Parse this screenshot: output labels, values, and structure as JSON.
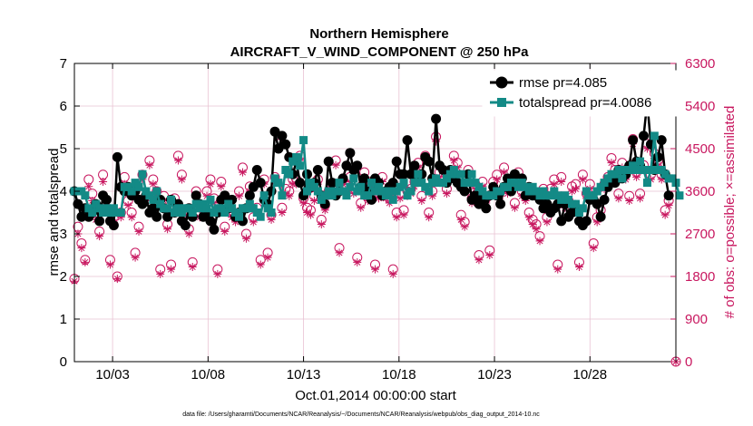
{
  "chart_data": {
    "type": "line",
    "title_line1": "Northern Hemisphere",
    "title_line2": "AIRCRAFT_V_WIND_COMPONENT @ 250 hPa",
    "xlabel": "Oct.01,2014 00:00:00 start",
    "ylabel_left": "rmse and totalspread",
    "ylabel_right": "# of obs: o=possible; ×=assimilated",
    "footer": "data file: /Users/gharamti/Documents/NCAR/Reanalysis/~/Documents/NCAR/Reanalysis/webpub/obs_diag_output_2014-10.nc",
    "xlim": [
      1,
      32.5
    ],
    "ylim_left": [
      0,
      7
    ],
    "ylim_right": [
      0,
      6300
    ],
    "xticks": [
      3,
      8,
      13,
      18,
      23,
      28
    ],
    "xtick_labels": [
      "10/03",
      "10/08",
      "10/13",
      "10/18",
      "10/23",
      "10/28"
    ],
    "yticks_left": [
      0,
      1,
      2,
      3,
      4,
      5,
      6,
      7
    ],
    "yticks_right": [
      0,
      900,
      1800,
      2700,
      3600,
      4500,
      5400,
      6300
    ],
    "colors": {
      "rmse": "#000000",
      "spread": "#138a86",
      "obs": "#c8175f",
      "grid": "#e9c3d3"
    },
    "series": [
      {
        "name": "rmse pr=4.085",
        "values": [
          4.0,
          3.7,
          3.4,
          3.6,
          3.4,
          3.5,
          3.7,
          3.3,
          3.9,
          3.8,
          3.3,
          3.2,
          4.8,
          4.1,
          4.0,
          4.1,
          3.9,
          4.0,
          3.8,
          3.7,
          3.9,
          3.5,
          3.6,
          3.4,
          3.8,
          3.6,
          3.4,
          3.8,
          3.5,
          3.7,
          3.3,
          3.2,
          3.6,
          3.4,
          3.9,
          3.7,
          3.4,
          3.5,
          3.3,
          3.1,
          3.5,
          3.8,
          3.9,
          3.6,
          3.8,
          3.4,
          3.5,
          3.3,
          3.6,
          3.9,
          4.1,
          4.5,
          4.2,
          3.8,
          3.7,
          4.0,
          5.4,
          5.0,
          5.3,
          5.1,
          4.8,
          4.4,
          4.7,
          4.2,
          3.9,
          4.4,
          4.1,
          4.2,
          4.5,
          3.9,
          3.7,
          4.7,
          4.2,
          3.9,
          4.0,
          4.3,
          4.6,
          4.9,
          4.5,
          4.6,
          4.1,
          4.3,
          4.0,
          3.8,
          4.3,
          4.2,
          3.9,
          4.0,
          4.1,
          4.2,
          4.7,
          4.4,
          4.4,
          5.2,
          4.4,
          4.6,
          4.3,
          4.4,
          4.8,
          4.7,
          4.3,
          5.7,
          4.6,
          4.5,
          4.2,
          4.5,
          4.3,
          4.2,
          4.1,
          4.0,
          4.4,
          3.8,
          3.9,
          3.7,
          3.8,
          3.6,
          3.9,
          4.1,
          3.9,
          3.7,
          4.1,
          4.3,
          4.0,
          4.4,
          4.2,
          4.3,
          3.9,
          4.1,
          3.9,
          3.9,
          3.8,
          3.6,
          3.7,
          3.5,
          3.6,
          3.7,
          3.3,
          3.7,
          3.4,
          3.5,
          3.6,
          3.3,
          3.2,
          3.3,
          3.8,
          3.8,
          3.7,
          3.4,
          3.8,
          4.1,
          4.3,
          4.2,
          4.5,
          4.3,
          4.4,
          4.6,
          5.2,
          4.7,
          4.6,
          5.3,
          6.1,
          5.1,
          4.5,
          4.8,
          5.2,
          4.4,
          3.9
        ]
      },
      {
        "name": "totalspread pr=4.0086",
        "values": [
          4.0,
          4.0,
          4.0,
          3.9,
          3.6,
          3.5,
          3.7,
          3.6,
          3.5,
          3.6,
          3.5,
          3.6,
          3.5,
          3.5,
          4.1,
          4.1,
          4.0,
          4.2,
          4.1,
          4.4,
          4.0,
          3.9,
          3.8,
          4.0,
          3.7,
          3.6,
          3.6,
          3.8,
          3.5,
          3.6,
          3.5,
          3.6,
          3.6,
          3.5,
          3.7,
          3.6,
          3.7,
          3.6,
          3.8,
          3.5,
          3.6,
          3.6,
          3.5,
          3.7,
          3.6,
          3.5,
          3.4,
          3.6,
          3.6,
          3.7,
          3.6,
          3.5,
          3.4,
          3.9,
          3.6,
          3.5,
          4.3,
          4.2,
          3.9,
          4.5,
          4.4,
          4.7,
          4.8,
          4.6,
          5.2,
          4.0,
          4.2,
          4.1,
          4.0,
          3.8,
          3.9,
          4.0,
          3.9,
          4.0,
          4.2,
          4.0,
          3.9,
          4.1,
          4.3,
          4.0,
          4.1,
          3.9,
          3.9,
          4.2,
          4.0,
          4.1,
          4.0,
          3.9,
          4.0,
          3.8,
          4.0,
          4.1,
          4.2,
          3.9,
          4.0,
          4.2,
          4.4,
          4.2,
          4.1,
          4.0,
          4.2,
          4.3,
          4.2,
          4.2,
          4.3,
          4.4,
          4.5,
          4.4,
          4.4,
          4.2,
          4.2,
          4.4,
          4.2,
          4.1,
          4.0,
          3.9,
          3.9,
          3.9,
          4.0,
          4.0,
          4.1,
          4.1,
          4.2,
          4.2,
          4.1,
          4.2,
          4.1,
          4.0,
          4.1,
          4.0,
          3.9,
          4.0,
          3.9,
          3.9,
          4.0,
          3.9,
          3.8,
          3.9,
          3.8,
          3.7,
          3.7,
          3.5,
          3.6,
          4.0,
          3.9,
          3.9,
          4.0,
          4.1,
          4.2,
          4.3,
          4.4,
          4.4,
          4.5,
          4.3,
          4.5,
          4.5,
          4.6,
          4.5,
          4.7,
          4.5,
          4.2,
          4.5,
          5.3,
          4.5,
          4.5,
          4.4,
          4.3,
          4.3,
          4.2,
          3.9
        ]
      },
      {
        "name": "possible obs",
        "values": [
          1750,
          2850,
          2500,
          2150,
          3850,
          3550,
          3150,
          2750,
          3950,
          3250,
          2150,
          3050,
          1800,
          3150,
          3900,
          3400,
          3150,
          2300,
          2850,
          3950,
          3500,
          4250,
          3850,
          3600,
          1950,
          3500,
          2900,
          2050,
          3450,
          4350,
          3950,
          3200,
          2800,
          2100,
          3600,
          3150,
          3250,
          3600,
          3850,
          3450,
          1950,
          3800,
          2850,
          3250,
          3150,
          3050,
          3600,
          4100,
          2700,
          3700,
          3050,
          3250,
          2150,
          3850,
          2300,
          3100,
          3900,
          4600,
          3250,
          3650,
          3600,
          3850,
          3850,
          4350,
          3450,
          3250,
          3200,
          3500,
          3850,
          3000,
          3300,
          3600,
          3650,
          4250,
          2400,
          3850,
          3650,
          3900,
          3650,
          2200,
          3350,
          4000,
          3500,
          3800,
          2050,
          3550,
          3900,
          3550,
          3450,
          1950,
          3150,
          3550,
          3200,
          3600,
          3650,
          3800,
          4200,
          3500,
          4350,
          3150,
          3600,
          4750,
          4000,
          3900,
          3650,
          3950,
          4350,
          4200,
          3100,
          2950,
          4050,
          3450,
          3750,
          2250,
          3800,
          3450,
          2350,
          3800,
          3950,
          3600,
          4100,
          3650,
          3850,
          3350,
          4000,
          3600,
          3500,
          3150,
          3000,
          2900,
          2650,
          3650,
          3050,
          3650,
          3850,
          2050,
          3900,
          3350,
          3400,
          3700,
          3750,
          2100,
          3950,
          3550,
          3750,
          2500,
          3050,
          3200,
          3750,
          3900,
          4300,
          4050,
          3550,
          4200,
          3950,
          3500,
          4700,
          4000,
          3550,
          4150,
          4600,
          3950,
          4400,
          4250,
          3950,
          3200,
          3400
        ]
      },
      {
        "name": "assimilated obs",
        "values": [
          1700,
          2700,
          2400,
          2100,
          3700,
          3400,
          3000,
          2650,
          3800,
          3150,
          2050,
          2950,
          1750,
          3050,
          3750,
          3300,
          3050,
          2200,
          2750,
          3850,
          3400,
          4150,
          3750,
          3500,
          1850,
          3400,
          2800,
          1950,
          3350,
          4250,
          3850,
          3100,
          2700,
          2000,
          3500,
          3050,
          3150,
          3500,
          3750,
          3350,
          1850,
          3700,
          2750,
          3150,
          3050,
          2950,
          3500,
          4000,
          2600,
          3600,
          2950,
          3150,
          2050,
          3750,
          2200,
          3000,
          3800,
          4500,
          3150,
          3550,
          3500,
          3750,
          3750,
          4250,
          3350,
          3150,
          3100,
          3400,
          3750,
          2900,
          3200,
          3500,
          3550,
          4150,
          2300,
          3750,
          3550,
          3800,
          3550,
          2100,
          3250,
          3900,
          3400,
          3700,
          1950,
          3450,
          3800,
          3450,
          3350,
          1850,
          3050,
          3450,
          3100,
          3500,
          3550,
          3700,
          4100,
          3400,
          4250,
          3050,
          3500,
          4650,
          3900,
          3800,
          3550,
          3850,
          4250,
          4100,
          3000,
          2850,
          3950,
          3350,
          3650,
          2150,
          3700,
          3350,
          2250,
          3700,
          3850,
          3500,
          4000,
          3550,
          3750,
          3250,
          3900,
          3500,
          3400,
          3050,
          2900,
          2800,
          2550,
          3550,
          2950,
          3550,
          3750,
          1950,
          3800,
          3250,
          3300,
          3600,
          3650,
          2000,
          3850,
          3450,
          3650,
          2400,
          2950,
          3100,
          3650,
          3800,
          4200,
          3950,
          3450,
          4100,
          3850,
          3400,
          4600,
          3900,
          3450,
          4050,
          4500,
          3850,
          4300,
          4150,
          3850,
          3100,
          3300
        ]
      }
    ]
  }
}
